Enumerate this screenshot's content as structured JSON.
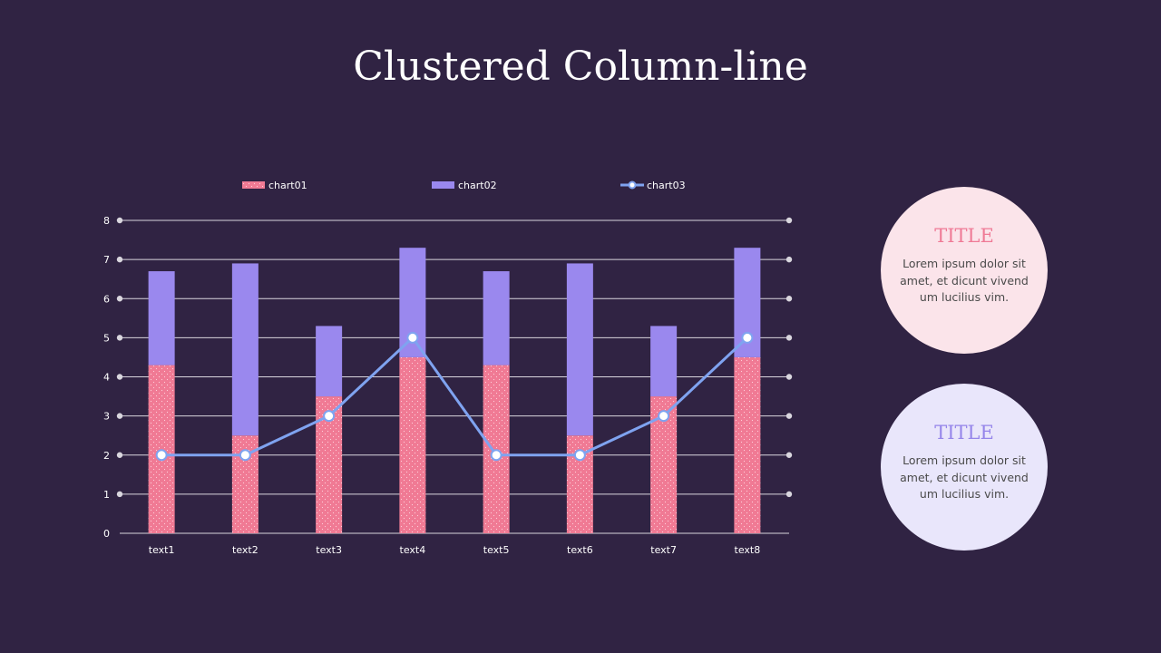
{
  "title": "Clustered Column-line",
  "colors": {
    "chart01": "#f07a94",
    "chart02": "#9a88ee",
    "chart03": "#7fa3f0",
    "background": "#302343"
  },
  "chart_data": {
    "type": "bar",
    "stacked": true,
    "categories": [
      "text1",
      "text2",
      "text3",
      "text4",
      "text5",
      "text6",
      "text7",
      "text8"
    ],
    "series": [
      {
        "name": "chart01",
        "type": "bar",
        "values": [
          4.3,
          2.5,
          3.5,
          4.5,
          4.3,
          2.5,
          3.5,
          4.5
        ]
      },
      {
        "name": "chart02",
        "type": "bar",
        "values": [
          2.4,
          4.4,
          1.8,
          2.8,
          2.4,
          4.4,
          1.8,
          2.8
        ]
      },
      {
        "name": "chart03",
        "type": "line",
        "values": [
          2,
          2,
          3,
          5,
          2,
          2,
          3,
          5
        ]
      }
    ],
    "ylim": [
      0,
      8
    ],
    "yticks": [
      0,
      1,
      2,
      3,
      4,
      5,
      6,
      7,
      8
    ],
    "grid": true,
    "legend": "top"
  },
  "cards": [
    {
      "title": "TITLE",
      "body": "Lorem ipsum dolor sit amet, et dicunt vivend um lucilius vim."
    },
    {
      "title": "TITLE",
      "body": "Lorem ipsum dolor sit amet, et dicunt vivend um lucilius vim."
    }
  ]
}
